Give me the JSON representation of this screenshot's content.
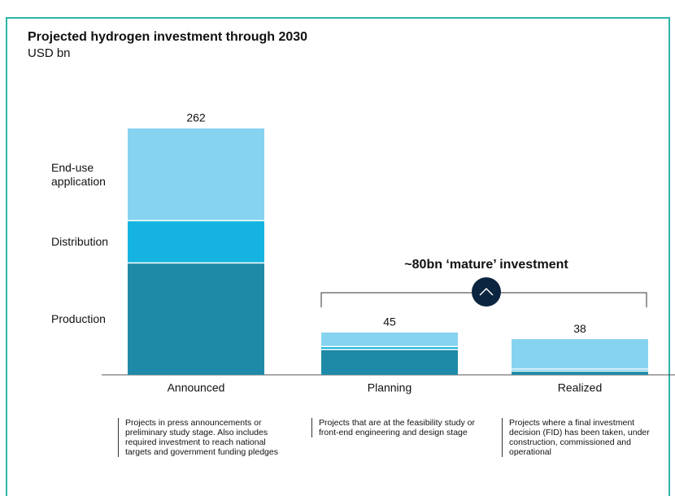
{
  "chart_data": {
    "type": "stacked-bar",
    "title": "Projected hydrogen investment through 2030",
    "subtitle": "USD bn",
    "categories": [
      "Announced",
      "Planning",
      "Realized"
    ],
    "series": [
      {
        "name": "Production",
        "color": "#1f8aa8",
        "values": [
          119,
          27,
          4
        ]
      },
      {
        "name": "Distribution",
        "color": "#15b4e0",
        "values": [
          45,
          3,
          2
        ]
      },
      {
        "name": "End-use application",
        "color": "#86d3f0",
        "values": [
          98,
          15,
          32
        ]
      }
    ],
    "totals": [
      262,
      45,
      38
    ],
    "annotation": "~80bn ‘mature’ investment",
    "descriptions": [
      "Projects in press announcements or preliminary study stage. Also includes required investment to reach national targets and government funding pledges",
      "Projects that are at the feasibility study or front-end engineering and design stage",
      "Projects where a final investment decision (FID) has been taken, under construction, commissioned and operational"
    ]
  }
}
